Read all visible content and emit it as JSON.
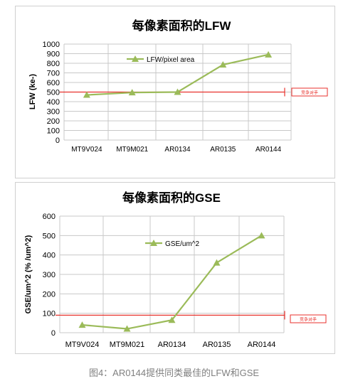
{
  "chart_data": [
    {
      "type": "line",
      "title": "每像素面积的LFW",
      "ylabel": "LFW (ke-)",
      "categories": [
        "MT9V024",
        "MT9M021",
        "AR0134",
        "AR0135",
        "AR0144"
      ],
      "series": [
        {
          "name": "LFW/pixel area",
          "values": [
            470,
            495,
            500,
            785,
            890
          ],
          "color": "#9bbb59"
        }
      ],
      "reference_line": {
        "value": 500,
        "label": "竞争对手",
        "color": "#e8322d"
      },
      "ylim": [
        0,
        1000
      ],
      "yticks": [
        0,
        100,
        200,
        300,
        400,
        500,
        600,
        700,
        800,
        900,
        1000
      ],
      "grid": true,
      "legend_position": "top-left"
    },
    {
      "type": "line",
      "title": "每像素面积的GSE",
      "ylabel": "GSE/um^2 (% /um^2)",
      "categories": [
        "MT9V024",
        "MT9M021",
        "AR0134",
        "AR0135",
        "AR0144"
      ],
      "series": [
        {
          "name": "GSE/um^2",
          "values": [
            40,
            20,
            65,
            360,
            500
          ],
          "color": "#9bbb59"
        }
      ],
      "reference_line": {
        "value": 90,
        "label": "竞争对手",
        "color": "#e8322d"
      },
      "ylim": [
        0,
        600
      ],
      "yticks": [
        0,
        100,
        200,
        300,
        400,
        500,
        600
      ],
      "grid": true,
      "legend_position": "top-center"
    }
  ],
  "caption": "图4：AR0144提供同类最佳的LFW和GSE"
}
